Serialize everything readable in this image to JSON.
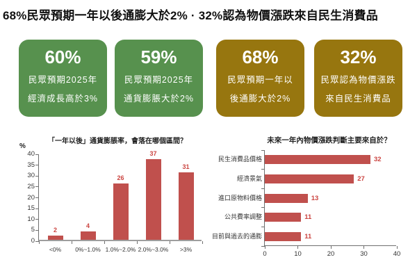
{
  "page": {
    "title": "68%民眾預期一年以後通膨大於2% · 32%認為物價漲跌來自民生消費品"
  },
  "colors": {
    "green_box": "#57914e",
    "olive_box": "#97760f",
    "bar_red": "#c0504d",
    "value_label_red": "#cb4440"
  },
  "stat_boxes": [
    {
      "value": "60%",
      "line1": "民眾預期2025年",
      "line2": "經濟成長高於3%",
      "color": "#57914e"
    },
    {
      "value": "59%",
      "line1": "民眾預期2025年",
      "line2": "通貨膨脹大於2%",
      "color": "#57914e"
    },
    {
      "value": "68%",
      "line1": "民眾預期一年以",
      "line2": "後通膨大於2%",
      "color": "#97760f"
    },
    {
      "value": "32%",
      "line1": "民眾認為物價漲跌",
      "line2": "來自民生消費品",
      "color": "#97760f"
    }
  ],
  "chart_data": [
    {
      "type": "bar",
      "title": "「一年以後」通貨膨脹率，會落在哪個區間？",
      "ylabel": "%",
      "categories": [
        "<0%",
        "0%~1.0%",
        "1.0%~2.0%",
        "2.0%~3.0%",
        ">3%"
      ],
      "values": [
        2,
        4,
        26,
        37,
        31
      ],
      "ylim": [
        0,
        40
      ],
      "ytick_step": 5,
      "grid": false,
      "legend": "none",
      "bar_color": "#c0504d",
      "label_color": "#cb4440"
    },
    {
      "type": "bar-horizontal",
      "title": "未來一年內物價漲跌判斷主要來自於？",
      "categories": [
        "民生消費品價格",
        "經濟景氣",
        "進口原物料價格",
        "公共費率調整",
        "目前與過去的通膨"
      ],
      "values": [
        32,
        27,
        13,
        11,
        11
      ],
      "xlim": [
        0,
        40
      ],
      "xtick_step": 10,
      "grid": false,
      "legend": "none",
      "bar_color": "#c0504d",
      "label_color": "#cb4440"
    }
  ]
}
